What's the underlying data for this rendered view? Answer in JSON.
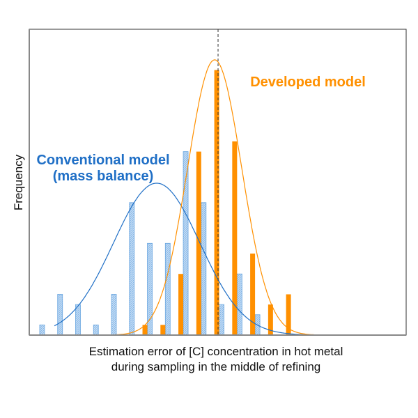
{
  "chart_data": {
    "type": "bar",
    "xlabel": "Estimation error of [C] concentration in hot metal",
    "xlabel2": "during sampling in the middle of refining",
    "ylabel": "Frequency",
    "xlim": [
      -0.6,
      20.4
    ],
    "ylim": [
      0,
      30
    ],
    "grid": false,
    "reference_line_x": 9.92,
    "series": [
      {
        "name": "Conventional model (mass balance)",
        "label_line1": "Conventional model",
        "label_line2": "(mass balance)",
        "color": "#1f6fc6",
        "fill": "#aacdf0",
        "style": "hatched",
        "x": [
          0,
          1,
          2,
          3,
          4,
          5,
          6,
          7,
          8,
          9,
          10,
          11,
          12
        ],
        "values": [
          1,
          4,
          3,
          1,
          4,
          13,
          9,
          9,
          18,
          13,
          3,
          6,
          2
        ],
        "fit": {
          "mean": 6.5,
          "sd": 2.41,
          "peak": 14.9
        }
      },
      {
        "name": "Developed model",
        "color": "#ff9000",
        "style": "solid",
        "x": [
          6,
          7,
          8,
          9,
          10,
          11,
          12,
          13,
          14
        ],
        "values": [
          1,
          1,
          6,
          18,
          26,
          19,
          8,
          3,
          4
        ],
        "fit": {
          "mean": 9.73,
          "sd": 1.51,
          "peak": 27
        }
      }
    ]
  }
}
